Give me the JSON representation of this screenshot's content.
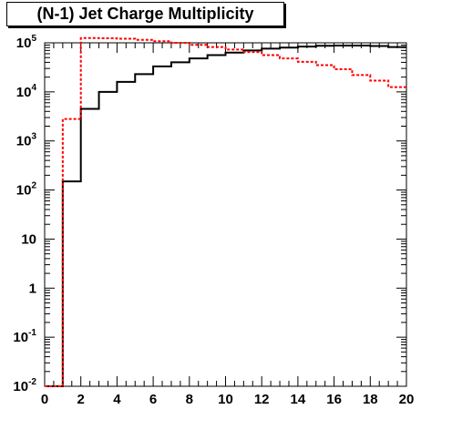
{
  "chart_data": {
    "type": "step",
    "title": "(N-1) Jet Charge Multiplicity",
    "xlim": [
      0,
      20
    ],
    "ylim": [
      0.01,
      100000
    ],
    "yscale": "log",
    "grid": false,
    "xticks": [
      "0",
      "2",
      "4",
      "6",
      "8",
      "10",
      "12",
      "14",
      "16",
      "18",
      "20"
    ],
    "yticks": [
      {
        "value": 0.01,
        "base": "10",
        "exp": "-2"
      },
      {
        "value": 0.1,
        "base": "10",
        "exp": "-1"
      },
      {
        "value": 1,
        "base": "1",
        "exp": ""
      },
      {
        "value": 10,
        "base": "10",
        "exp": ""
      },
      {
        "value": 100,
        "base": "10",
        "exp": "2"
      },
      {
        "value": 1000,
        "base": "10",
        "exp": "3"
      },
      {
        "value": 10000,
        "base": "10",
        "exp": "4"
      },
      {
        "value": 100000,
        "base": "10",
        "exp": "5"
      }
    ],
    "bin_edges": [
      0,
      1,
      2,
      3,
      4,
      5,
      6,
      7,
      8,
      9,
      10,
      11,
      12,
      13,
      14,
      15,
      16,
      17,
      18,
      19,
      20
    ],
    "series": [
      {
        "color": "#000000",
        "style": "solid",
        "values": [
          0,
          150,
          4500,
          10000,
          16000,
          23000,
          33000,
          40000,
          48000,
          56000,
          63000,
          70000,
          76000,
          80000,
          84000,
          87000,
          88000,
          88000,
          86000,
          82000
        ]
      },
      {
        "color": "#ff0000",
        "style": "dashed",
        "values": [
          0,
          2800,
          125000,
          124000,
          121000,
          115000,
          108000,
          100000,
          91000,
          82000,
          73000,
          65000,
          56000,
          48000,
          41000,
          35000,
          29000,
          22000,
          17000,
          12500
        ]
      }
    ]
  }
}
